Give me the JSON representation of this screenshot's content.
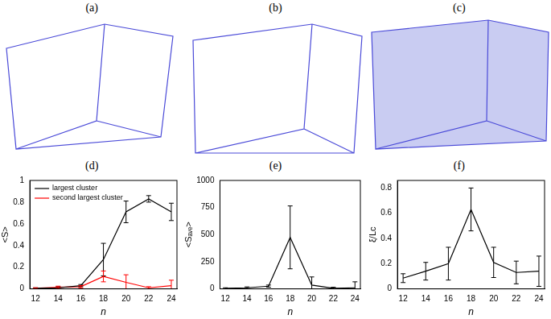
{
  "figure_labels": [
    "(a)",
    "(b)",
    "(c)"
  ],
  "chart_data": [
    {
      "panel_label": "(d)",
      "type": "line",
      "x_label": "n",
      "y_label": "<S>",
      "x": [
        12,
        14,
        16,
        18,
        20,
        22,
        24
      ],
      "series": [
        {
          "name": "largest cluster",
          "color": "#000000",
          "values": [
            0.005,
            0.01,
            0.03,
            0.27,
            0.71,
            0.83,
            0.71
          ],
          "errors": [
            0.005,
            0.01,
            0.01,
            0.15,
            0.1,
            0.03,
            0.08
          ]
        },
        {
          "name": "second largest cluster",
          "color": "#ff0000",
          "values": [
            0.005,
            0.015,
            0.02,
            0.115,
            0.06,
            0.01,
            0.03
          ],
          "errors": [
            0.005,
            0.01,
            0.01,
            0.05,
            0.07,
            0.01,
            0.05
          ]
        }
      ],
      "xlim": [
        11.5,
        24.5
      ],
      "xticks": [
        12,
        14,
        16,
        18,
        20,
        22,
        24
      ],
      "ylim": [
        0,
        1
      ],
      "yticks": [
        0,
        0.2,
        0.4,
        0.6,
        0.8,
        1
      ],
      "legend": "upper left",
      "grid": false
    },
    {
      "panel_label": "(e)",
      "type": "line",
      "x_label": "n",
      "y_label": "<Sₐᵥₑ>",
      "x": [
        12,
        14,
        16,
        18,
        20,
        22,
        24
      ],
      "series": [
        {
          "color": "#000000",
          "values": [
            5,
            10,
            25,
            475,
            35,
            5,
            10
          ],
          "errors": [
            5,
            8,
            10,
            290,
            75,
            10,
            55
          ]
        }
      ],
      "xlim": [
        11.5,
        24.5
      ],
      "xticks": [
        12,
        14,
        16,
        18,
        20,
        22,
        24
      ],
      "ylim": [
        0,
        1000
      ],
      "yticks": [
        0,
        250,
        500,
        750,
        1000
      ],
      "grid": false
    },
    {
      "panel_label": "(f)",
      "type": "line",
      "x_label": "n",
      "y_label": "ξ/Lc",
      "x": [
        12,
        14,
        16,
        18,
        20,
        22,
        24
      ],
      "series": [
        {
          "color": "#000000",
          "values": [
            0.085,
            0.14,
            0.2,
            0.63,
            0.21,
            0.13,
            0.14
          ],
          "errors": [
            0.035,
            0.07,
            0.13,
            0.17,
            0.12,
            0.09,
            0.12
          ]
        }
      ],
      "xlim": [
        11.5,
        24.5
      ],
      "xticks": [
        12,
        14,
        16,
        18,
        20,
        22,
        24
      ],
      "ylim": [
        0,
        0.86
      ],
      "yticks": [
        0,
        0.2,
        0.4,
        0.6,
        0.8
      ],
      "grid": false
    }
  ]
}
